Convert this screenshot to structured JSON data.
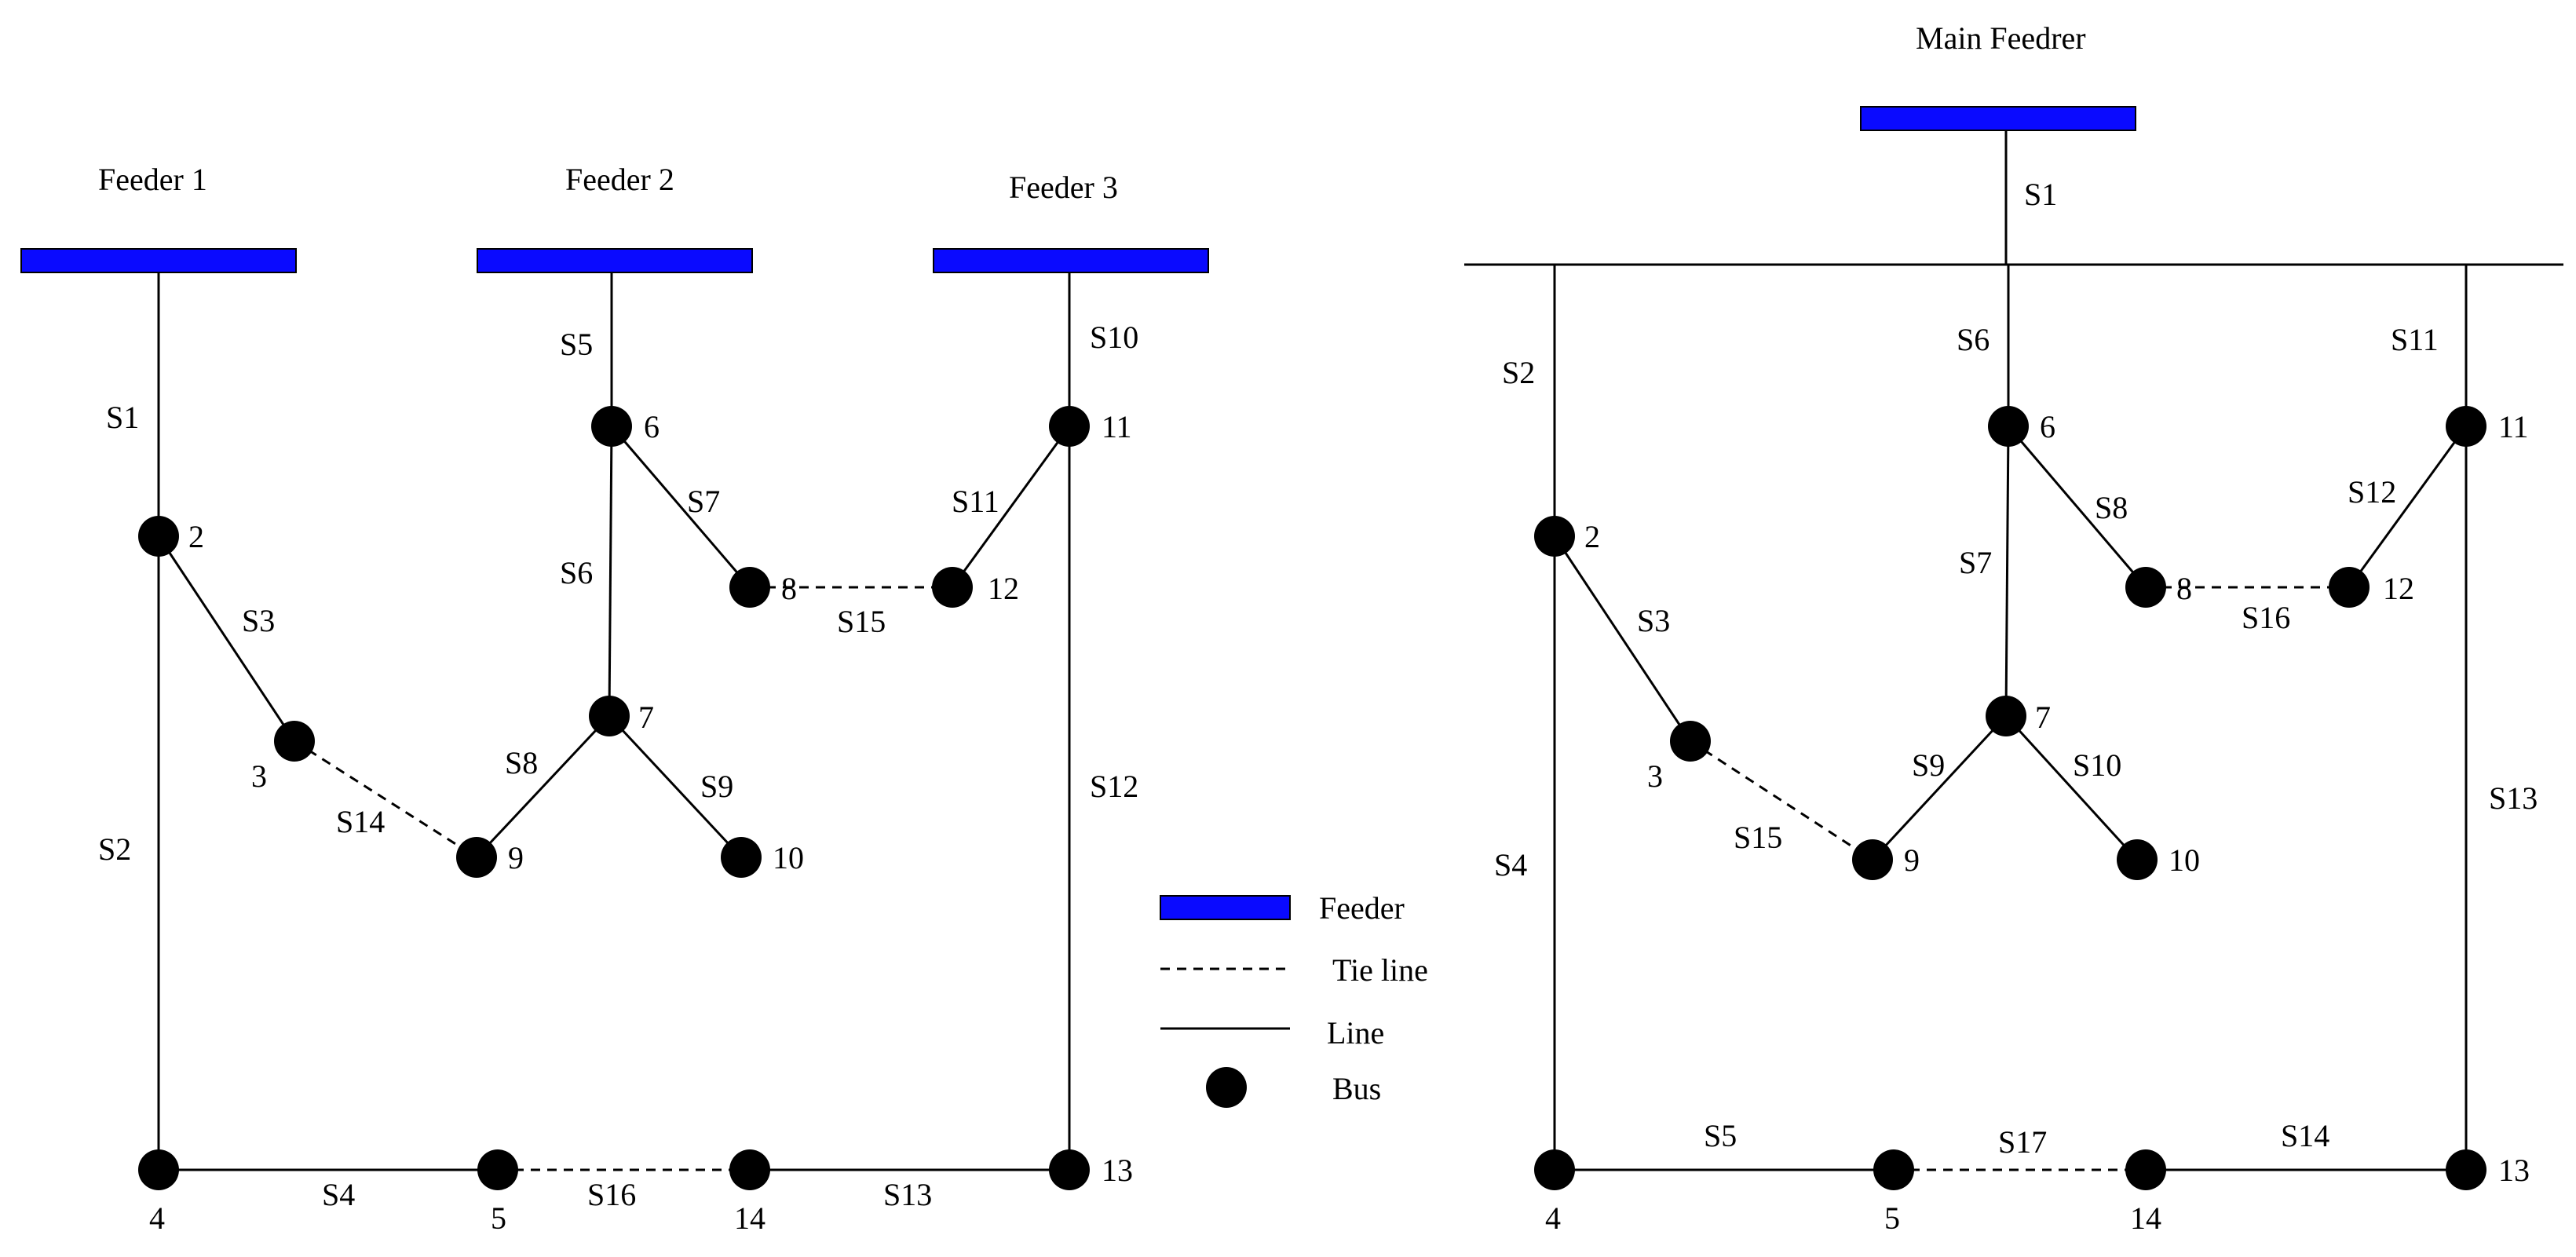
{
  "left": {
    "feeders": [
      "Feeder 1",
      "Feeder 2",
      "Feeder 3"
    ],
    "buses": [
      "2",
      "3",
      "4",
      "5",
      "6",
      "7",
      "8",
      "9",
      "10",
      "11",
      "12",
      "13",
      "14"
    ],
    "sections": [
      "S1",
      "S2",
      "S3",
      "S4",
      "S5",
      "S6",
      "S7",
      "S8",
      "S9",
      "S10",
      "S11",
      "S12",
      "S13",
      "S14",
      "S15",
      "S16"
    ]
  },
  "right": {
    "feeder": "Main Feedrer",
    "buses": [
      "2",
      "3",
      "4",
      "5",
      "6",
      "7",
      "8",
      "9",
      "10",
      "11",
      "12",
      "13",
      "14"
    ],
    "sections": [
      "S1",
      "S2",
      "S3",
      "S4",
      "S5",
      "S6",
      "S7",
      "S8",
      "S9",
      "S10",
      "S11",
      "S12",
      "S13",
      "S14",
      "S15",
      "S16",
      "S17"
    ]
  },
  "legend": {
    "feeder": "Feeder",
    "tie_line": "Tie line",
    "line": "Line",
    "bus": "Bus"
  },
  "colors": {
    "feeder": "#0a0aff"
  }
}
